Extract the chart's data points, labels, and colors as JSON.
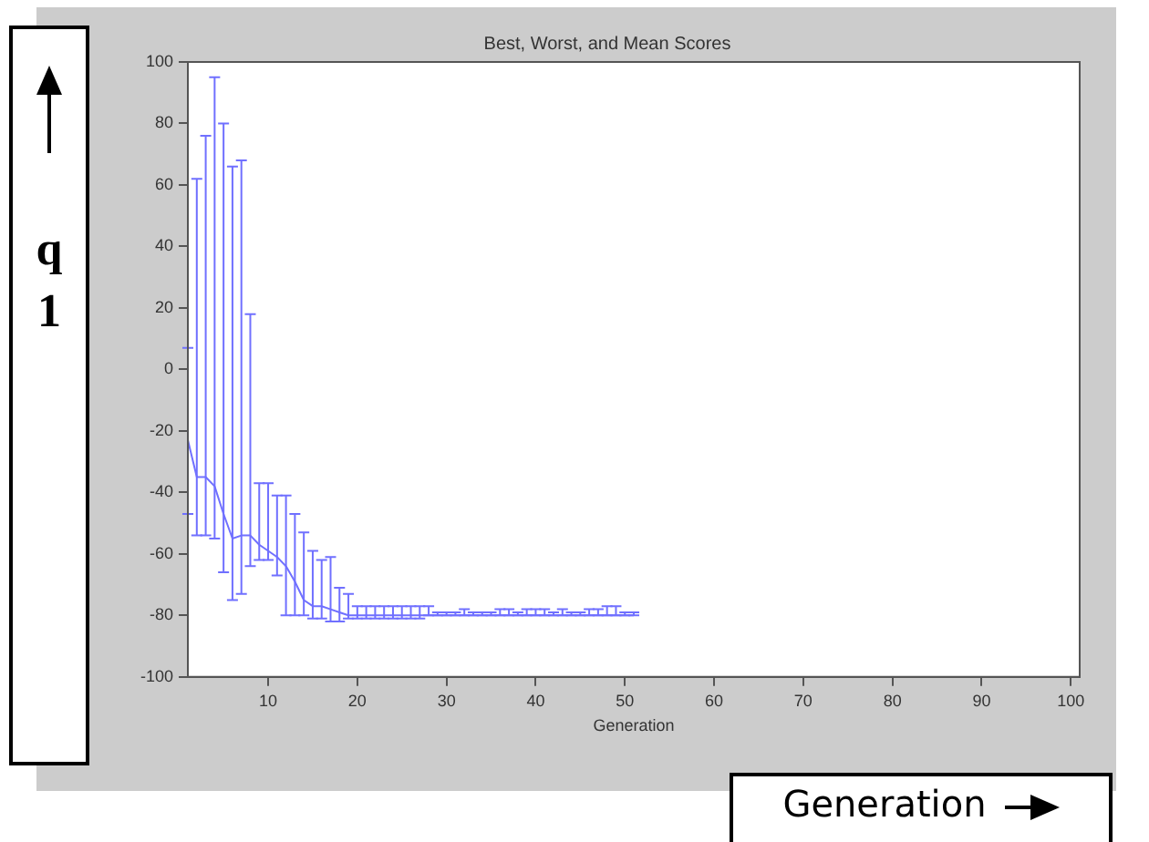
{
  "chart_data": {
    "type": "line",
    "title": "Best, Worst, and Mean Scores",
    "xlabel": "Generation",
    "annotations": [
      "q 1",
      "Generation"
    ],
    "x": [
      1,
      2,
      3,
      4,
      5,
      6,
      7,
      8,
      9,
      10,
      11,
      12,
      13,
      14,
      15,
      16,
      17,
      18,
      19,
      20,
      21,
      22,
      23,
      24,
      25,
      26,
      27,
      28,
      29,
      30,
      31,
      32,
      33,
      34,
      35,
      36,
      37,
      38,
      39,
      40,
      41,
      42,
      43,
      44,
      45,
      46,
      47,
      48,
      49,
      50,
      51
    ],
    "xlim": [
      1,
      101
    ],
    "xticks": [
      10,
      20,
      30,
      40,
      50,
      60,
      70,
      80,
      90,
      100
    ],
    "ylim": [
      -100,
      100
    ],
    "yticks": [
      -100,
      -80,
      -60,
      -40,
      -20,
      0,
      20,
      40,
      60,
      80,
      100
    ],
    "marker": "none",
    "line_style": "solid",
    "grid": false,
    "series": [
      {
        "color": "#7070ff",
        "values": [
          -23,
          -35,
          -35,
          -38,
          -47,
          -55,
          -54,
          -54,
          -57,
          -59,
          -61,
          -64,
          -69,
          -75,
          -77,
          -77,
          -78,
          -79,
          -80,
          -80,
          -80,
          -80,
          -80,
          -80,
          -80,
          -80,
          -80,
          -80,
          -80,
          -80,
          -80,
          -80,
          -80,
          -80,
          -80,
          -80,
          -80,
          -80,
          -80,
          -80,
          -80,
          -80,
          -80,
          -80,
          -80,
          -80,
          -80,
          -80,
          -80,
          -80,
          -80
        ],
        "errors": [
          [
            -47,
            7
          ],
          [
            -54,
            62
          ],
          [
            -54,
            76
          ],
          [
            -55,
            95
          ],
          [
            -66,
            80
          ],
          [
            -75,
            66
          ],
          [
            -73,
            68
          ],
          [
            -64,
            18
          ],
          [
            -62,
            -37
          ],
          [
            -62,
            -37
          ],
          [
            -67,
            -41
          ],
          [
            -80,
            -41
          ],
          [
            -80,
            -47
          ],
          [
            -80,
            -53
          ],
          [
            -81,
            -59
          ],
          [
            -81,
            -62
          ],
          [
            -82,
            -61
          ],
          [
            -82,
            -71
          ],
          [
            -81,
            -73
          ],
          [
            -81,
            -77
          ],
          [
            -81,
            -77
          ],
          [
            -81,
            -77
          ],
          [
            -81,
            -77
          ],
          [
            -81,
            -77
          ],
          [
            -81,
            -77
          ],
          [
            -81,
            -77
          ],
          [
            -81,
            -77
          ],
          [
            -80,
            -77
          ],
          [
            -80,
            -79
          ],
          [
            -80,
            -79
          ],
          [
            -80,
            -79
          ],
          [
            -80,
            -78
          ],
          [
            -80,
            -79
          ],
          [
            -80,
            -79
          ],
          [
            -80,
            -79
          ],
          [
            -80,
            -78
          ],
          [
            -80,
            -78
          ],
          [
            -80,
            -79
          ],
          [
            -80,
            -78
          ],
          [
            -80,
            -78
          ],
          [
            -80,
            -78
          ],
          [
            -80,
            -79
          ],
          [
            -80,
            -78
          ],
          [
            -80,
            -79
          ],
          [
            -80,
            -79
          ],
          [
            -80,
            -78
          ],
          [
            -80,
            -78
          ],
          [
            -80,
            -77
          ],
          [
            -80,
            -77
          ],
          [
            -80,
            -79
          ],
          [
            -80,
            -79
          ]
        ]
      }
    ]
  }
}
